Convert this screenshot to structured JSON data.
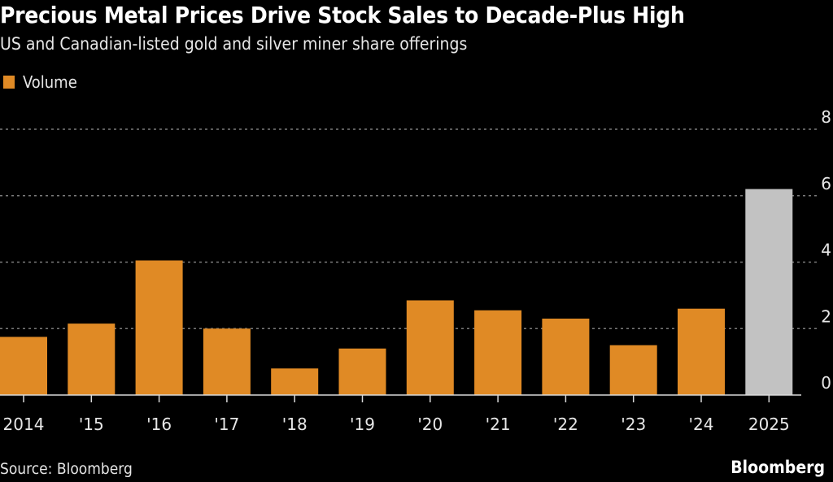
{
  "chart_data": {
    "type": "bar",
    "title": "Precious Metal Prices Drive Stock Sales to Decade-Plus High",
    "subtitle": "US and Canadian-listed gold and silver miner share offerings",
    "legend": [
      {
        "name": "Volume",
        "color": "#e08a25"
      }
    ],
    "legend_placement": "top-left",
    "categories": [
      "2014",
      "'15",
      "'16",
      "'17",
      "'18",
      "'19",
      "'20",
      "'21",
      "'22",
      "'23",
      "'24",
      "2025"
    ],
    "series": [
      {
        "name": "Volume",
        "values": [
          1.75,
          2.15,
          4.05,
          2.0,
          0.8,
          1.4,
          2.85,
          2.55,
          2.3,
          1.5,
          2.6,
          6.2
        ]
      }
    ],
    "highlight_last": true,
    "colors": {
      "bar": "#e08a25",
      "highlight": "#c2c2c2",
      "grid": "#7a7a7a",
      "axis": "#d9d9d9"
    },
    "yticks": [
      0,
      2,
      4,
      6,
      8
    ],
    "ylim": [
      0,
      8
    ],
    "y_axis_side": "right",
    "grid": true,
    "xlabel": "",
    "ylabel": "",
    "source": "Source: Bloomberg",
    "brand": "Bloomberg"
  }
}
